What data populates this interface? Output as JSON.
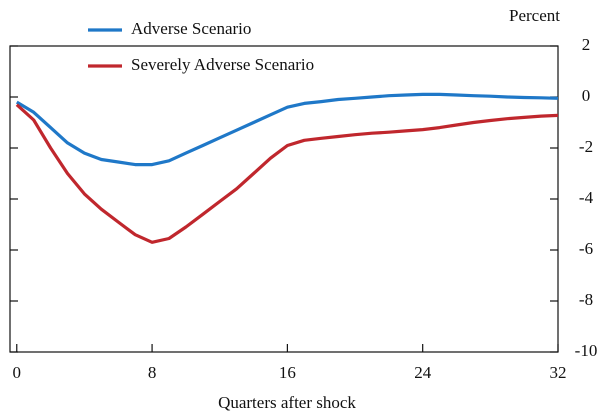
{
  "chart_data": {
    "type": "line",
    "title": "Percent",
    "x_label": "Quarters after shock",
    "x": [
      0,
      1,
      2,
      3,
      4,
      5,
      6,
      7,
      8,
      9,
      10,
      11,
      12,
      13,
      14,
      15,
      16,
      17,
      18,
      19,
      20,
      21,
      22,
      23,
      24,
      25,
      26,
      27,
      28,
      29,
      30,
      31,
      32
    ],
    "series": [
      {
        "name": "Adverse Scenario",
        "color": "#1f78c8",
        "values": [
          -0.2,
          -0.6,
          -1.2,
          -1.8,
          -2.2,
          -2.45,
          -2.55,
          -2.65,
          -2.65,
          -2.5,
          -2.2,
          -1.9,
          -1.6,
          -1.3,
          -1.0,
          -0.7,
          -0.4,
          -0.25,
          -0.18,
          -0.1,
          -0.05,
          0.0,
          0.05,
          0.08,
          0.1,
          0.1,
          0.08,
          0.05,
          0.03,
          0.0,
          -0.02,
          -0.03,
          -0.05
        ]
      },
      {
        "name": "Severely Adverse Scenario",
        "color": "#c0272d",
        "values": [
          -0.3,
          -0.9,
          -2.0,
          -3.0,
          -3.8,
          -4.4,
          -4.9,
          -5.4,
          -5.7,
          -5.55,
          -5.1,
          -4.6,
          -4.1,
          -3.6,
          -3.0,
          -2.4,
          -1.9,
          -1.7,
          -1.62,
          -1.55,
          -1.48,
          -1.42,
          -1.38,
          -1.33,
          -1.28,
          -1.2,
          -1.1,
          -1.0,
          -0.92,
          -0.85,
          -0.8,
          -0.75,
          -0.72
        ]
      }
    ],
    "xlim": [
      -0.4,
      32
    ],
    "xticks": [
      0,
      8,
      16,
      24,
      32
    ],
    "ylim": [
      -10,
      2
    ],
    "yticks": [
      2,
      0,
      -2,
      -4,
      -6,
      -8,
      -10
    ],
    "y_axis_side": "right",
    "legend": "upper-left"
  }
}
